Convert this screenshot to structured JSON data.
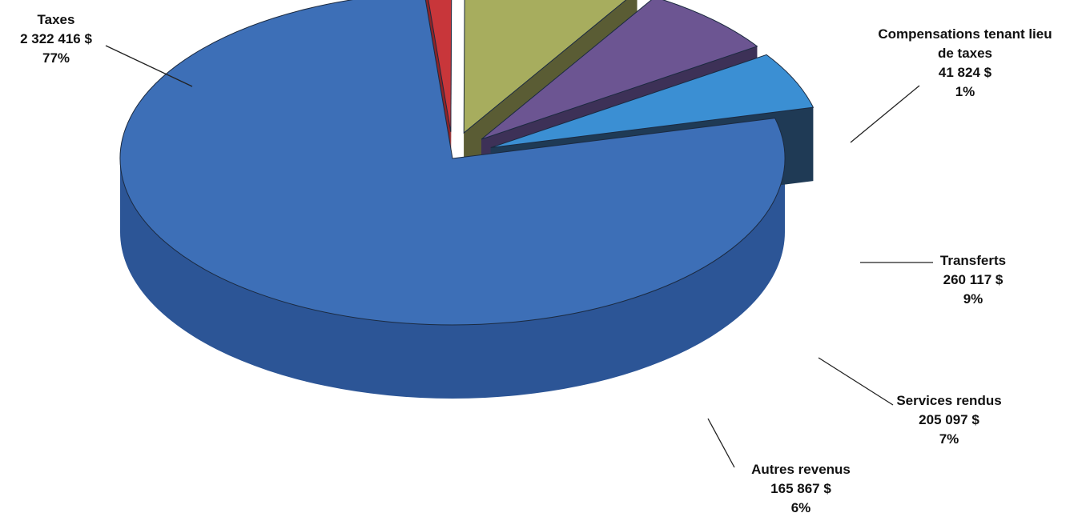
{
  "chart_data": {
    "type": "pie",
    "title": "",
    "currency": "$",
    "slices": [
      {
        "label": "Taxes",
        "value": 2322416,
        "value_text": "2 322 416  $",
        "percent": 77,
        "percent_text": "77%",
        "color": "#3d6fb7",
        "side_color": "#2c5596",
        "exploded": false
      },
      {
        "label": "Compensations tenant lieu de taxes",
        "label_lines": [
          "Compensations tenant lieu",
          "de taxes"
        ],
        "value": 41824,
        "value_text": "41 824  $",
        "percent": 1,
        "percent_text": "1%",
        "color": "#c8363a",
        "side_color": "#8e2326",
        "exploded": true
      },
      {
        "label": "Transferts",
        "value": 260117,
        "value_text": "260 117  $",
        "percent": 9,
        "percent_text": "9%",
        "color": "#a7ad5e",
        "side_color": "#5a5c34",
        "exploded": true
      },
      {
        "label": "Services rendus",
        "value": 205097,
        "value_text": "205 097  $",
        "percent": 7,
        "percent_text": "7%",
        "color": "#6c5592",
        "side_color": "#3d3157",
        "exploded": true
      },
      {
        "label": "Autres revenus",
        "value": 165867,
        "value_text": "165 867  $",
        "percent": 6,
        "percent_text": "6%",
        "color": "#3b8fd3",
        "side_color": "#1f3a55",
        "exploded": true
      }
    ],
    "legend": "none",
    "style": "3d-exploded"
  }
}
